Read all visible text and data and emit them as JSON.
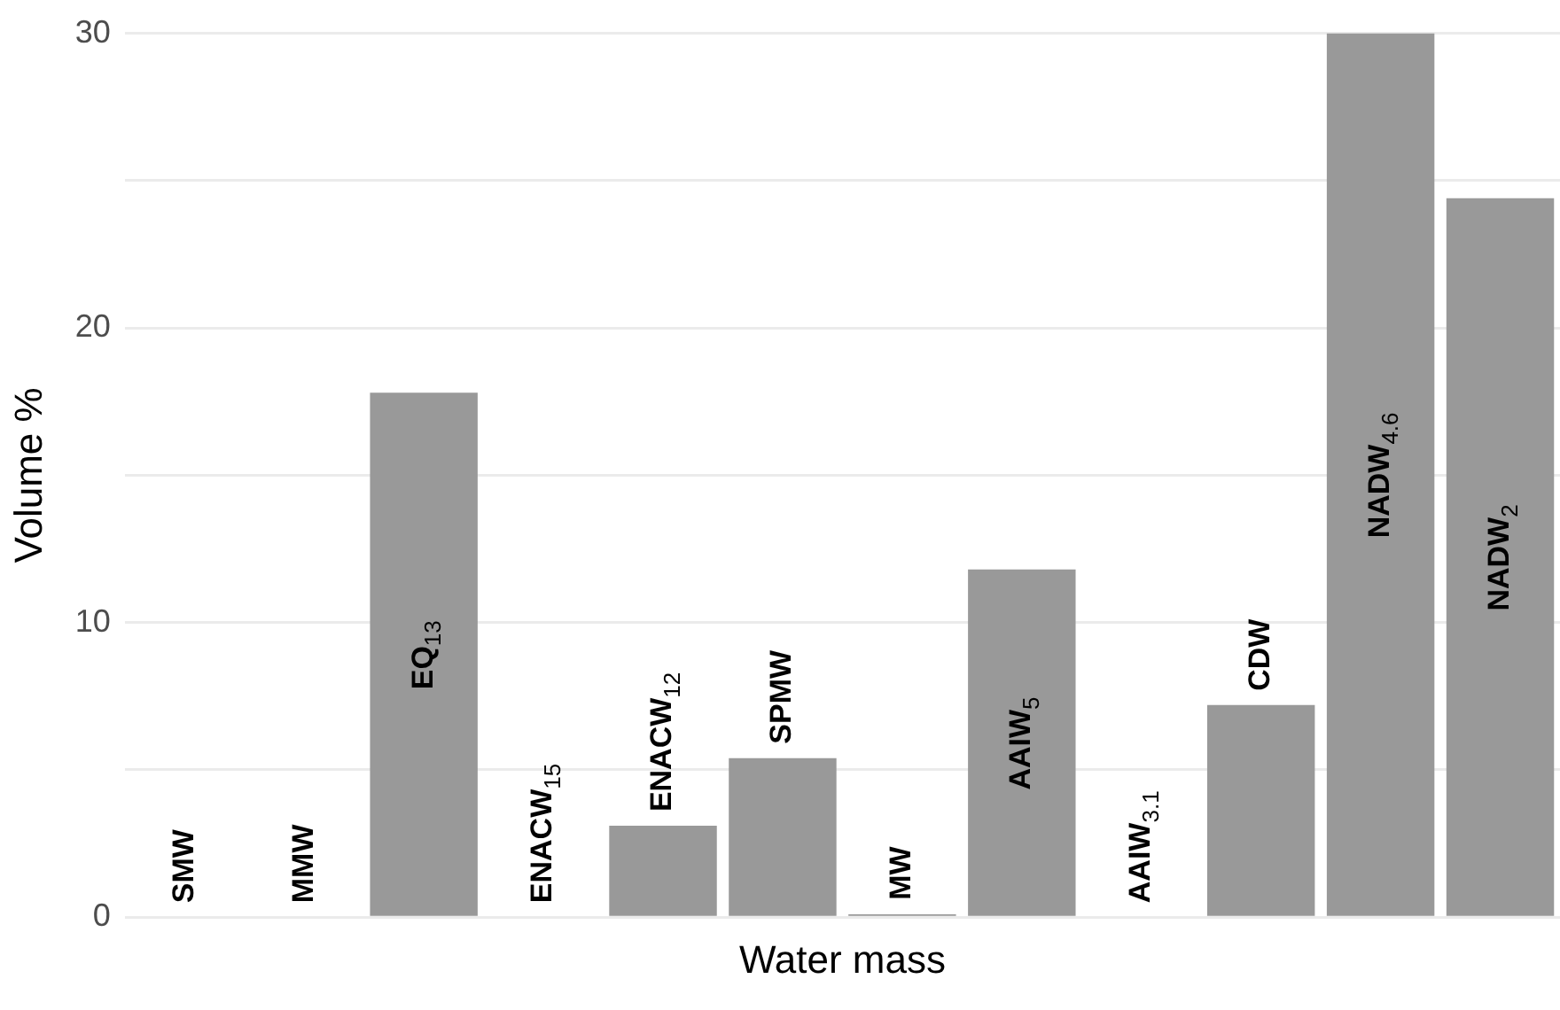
{
  "chart_data": {
    "type": "bar",
    "xlabel": "Water mass",
    "ylabel": "Volume %",
    "categories": [
      "SMW",
      "MMW",
      "EQ$_{13}$",
      "ENACW$_{15}$",
      "ENACW$_{12}$",
      "SPMW",
      "MW",
      "AAIW$_{5}$",
      "AAIW$_{3.1}$",
      "CDW",
      "NADW$_{4.6}$",
      "NADW$_{2}$"
    ],
    "values": [
      0,
      0,
      17.8,
      0,
      3.1,
      5.4,
      0.1,
      11.8,
      0,
      7.2,
      30,
      24.4
    ],
    "color": "#999999",
    "ylim": [
      0,
      30
    ],
    "yticks": [
      0,
      {
        "value": 5,
        "label": null
      },
      10,
      {
        "value": 15,
        "label": null
      },
      20,
      {
        "value": 25,
        "label": null
      },
      30
    ],
    "grid": "y",
    "legend": false
  }
}
